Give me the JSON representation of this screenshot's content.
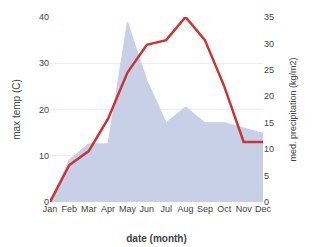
{
  "chart_data": {
    "type": "line",
    "categories": [
      "Jan",
      "Feb",
      "Mar",
      "Apr",
      "May",
      "Jun",
      "Jul",
      "Aug",
      "Sep",
      "Oct",
      "Nov",
      "Dec"
    ],
    "series": [
      {
        "type": "area",
        "axis": "y2",
        "color": "#c8d0e8",
        "values": [
          0,
          8,
          11,
          11,
          34,
          23,
          15,
          18,
          15,
          15,
          14,
          13
        ]
      },
      {
        "type": "line",
        "color": "#cc3333",
        "values": [
          0,
          8,
          11,
          18,
          28,
          34,
          35,
          40,
          35,
          25,
          13,
          13
        ]
      }
    ],
    "xlabel": "date (month)",
    "ylabel": "max temp (C)",
    "y2label": "med. precipitation (kg/m2)",
    "ylim": [
      0,
      40
    ],
    "yticks": [
      0,
      10,
      20,
      30,
      40
    ],
    "y2lim": [
      0,
      35
    ],
    "y2ticks": [
      0,
      5,
      10,
      15,
      20,
      25,
      30,
      35
    ],
    "grid": true
  }
}
